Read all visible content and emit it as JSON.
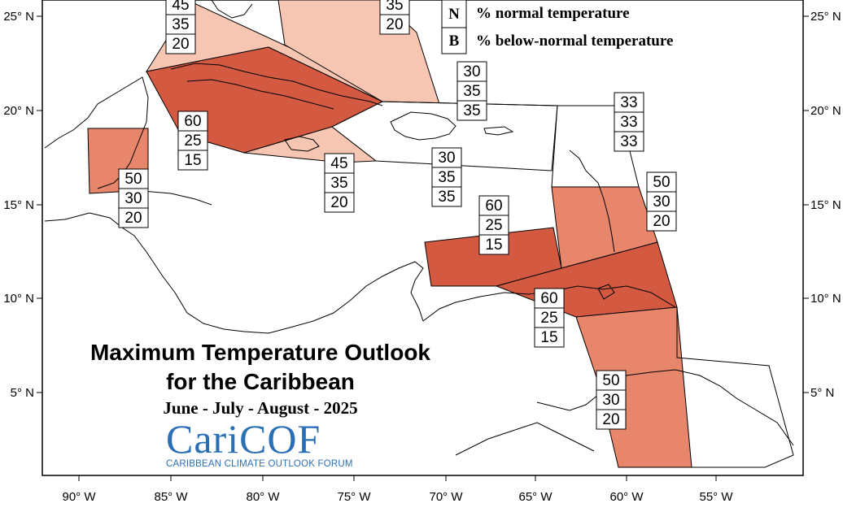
{
  "title": {
    "line1": "Maximum Temperature Outlook",
    "line2": "for the Caribbean",
    "period": "June - July - August - 2025"
  },
  "logo": {
    "name": "CariCOF",
    "subtitle": "CARIBBEAN CLIMATE OUTLOOK FORUM"
  },
  "legend": [
    {
      "key": "N",
      "text": "% normal temperature"
    },
    {
      "key": "B",
      "text": "% below-normal temperature"
    }
  ],
  "axes": {
    "x_ticks": [
      "90° W",
      "85° W",
      "80° W",
      "75° W",
      "70° W",
      "65° W",
      "60° W",
      "55° W"
    ],
    "y_ticks": [
      "25° N",
      "20° N",
      "15° N",
      "10° N",
      "5° N"
    ]
  },
  "colors": {
    "above_45": "#f7c6b2",
    "above_50": "#e8866b",
    "above_60": "#d35a40",
    "neutral": "#ffffff",
    "border": "#000000"
  },
  "forecast_boxes": [
    {
      "id": "bahamas-west",
      "values": [
        "45",
        "35",
        "20"
      ]
    },
    {
      "id": "bahamas-east",
      "values": [
        "35",
        "20"
      ]
    },
    {
      "id": "turks-caicos",
      "values": [
        "30",
        "35",
        "35"
      ]
    },
    {
      "id": "cayman-cuba",
      "values": [
        "60",
        "25",
        "15"
      ]
    },
    {
      "id": "belize",
      "values": [
        "50",
        "30",
        "20"
      ]
    },
    {
      "id": "jamaica",
      "values": [
        "45",
        "35",
        "20"
      ]
    },
    {
      "id": "hispaniola",
      "values": [
        "30",
        "35",
        "35"
      ]
    },
    {
      "id": "leeward-north",
      "values": [
        "33",
        "33",
        "33"
      ]
    },
    {
      "id": "windward",
      "values": [
        "50",
        "30",
        "20"
      ]
    },
    {
      "id": "abc-islands",
      "values": [
        "60",
        "25",
        "15"
      ]
    },
    {
      "id": "trinidad",
      "values": [
        "60",
        "25",
        "15"
      ]
    },
    {
      "id": "guianas",
      "values": [
        "50",
        "30",
        "20"
      ]
    }
  ]
}
